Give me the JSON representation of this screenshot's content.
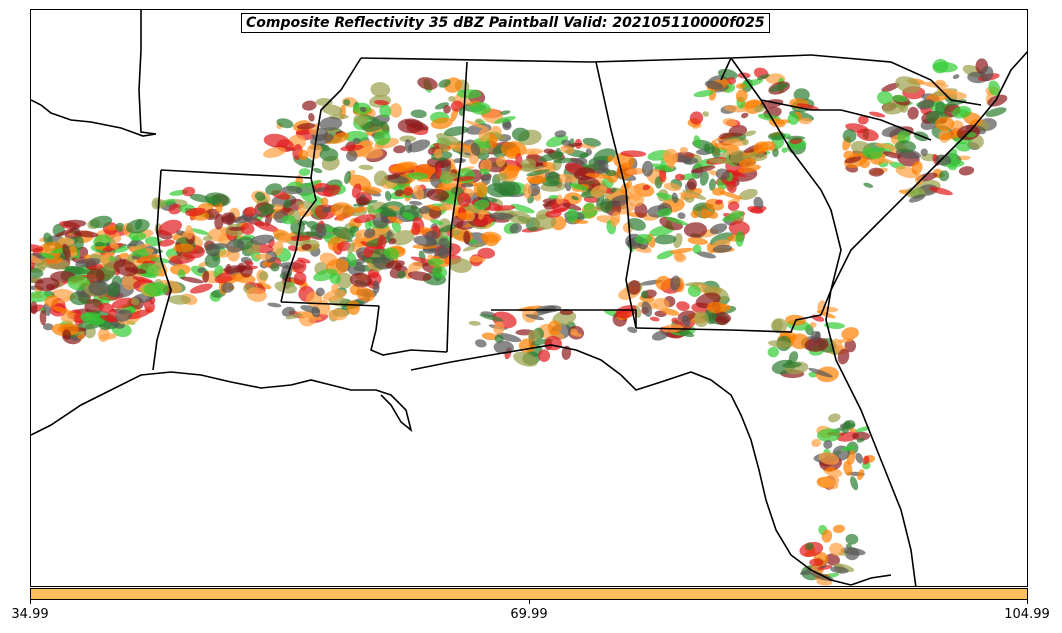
{
  "title": "Composite Reflectivity 35 dBZ Paintball Valid: 202105110000f025",
  "colorbar": {
    "color": "#ffbf5f",
    "ticks": [
      "34.99",
      "69.99",
      "104.99"
    ]
  },
  "map": {
    "region": "Southeastern United States",
    "paint_colors": [
      "#e31a1c",
      "#ff7f00",
      "#33cc33",
      "#8b1a1a",
      "#9aa04a",
      "#2e7d32",
      "#ff9f3f",
      "#555555"
    ]
  }
}
